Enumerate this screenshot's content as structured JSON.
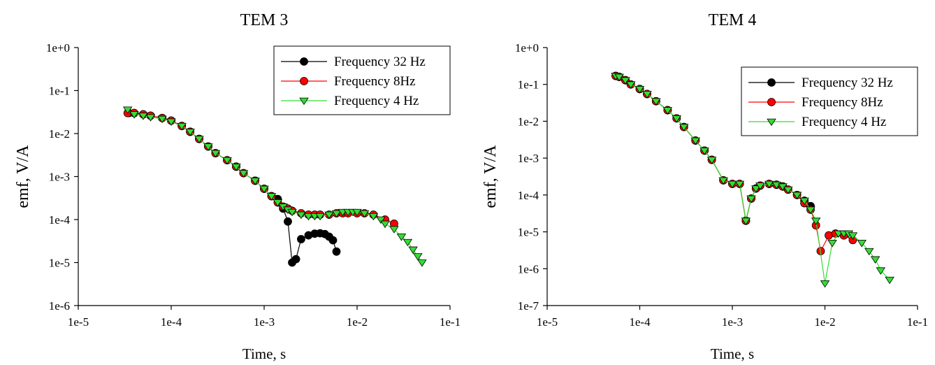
{
  "chart_data": [
    {
      "type": "line",
      "title": "TEM 3",
      "xlabel": "Time, s",
      "ylabel": "emf, V/A",
      "x_scale": "log",
      "y_scale": "log",
      "xlim": [
        1e-05,
        0.1
      ],
      "ylim": [
        1e-06,
        1
      ],
      "x_ticks": [
        "1e-5",
        "1e-4",
        "1e-3",
        "1e-2",
        "1e-1"
      ],
      "y_ticks": [
        "1e+0",
        "1e-1",
        "1e-2",
        "1e-3",
        "1e-4",
        "1e-5",
        "1e-6"
      ],
      "grid": false,
      "legend_position": "top-right",
      "series": [
        {
          "name": "Frequency 32 Hz",
          "color": "#000000",
          "marker": "circle",
          "x": [
            3.5e-05,
            4e-05,
            5e-05,
            6e-05,
            8e-05,
            0.0001,
            0.00013,
            0.00016,
            0.0002,
            0.00025,
            0.0003,
            0.0004,
            0.0005,
            0.0006,
            0.0008,
            0.001,
            0.0012,
            0.0014,
            0.0016,
            0.0018,
            0.002,
            0.0022,
            0.0025,
            0.003,
            0.0035,
            0.004,
            0.0045,
            0.005,
            0.0055,
            0.006
          ],
          "y": [
            0.03,
            0.03,
            0.028,
            0.026,
            0.023,
            0.02,
            0.015,
            0.011,
            0.0075,
            0.005,
            0.0035,
            0.0024,
            0.0017,
            0.0012,
            0.0008,
            0.00052,
            0.00035,
            0.0003,
            0.00018,
            9e-05,
            1e-05,
            1.2e-05,
            3.5e-05,
            4.3e-05,
            4.7e-05,
            4.8e-05,
            4.6e-05,
            4e-05,
            3.3e-05,
            1.8e-05
          ]
        },
        {
          "name": "Frequency 8Hz",
          "color": "#ff0000",
          "marker": "circle",
          "x": [
            3.4e-05,
            4e-05,
            5e-05,
            6e-05,
            8e-05,
            0.0001,
            0.00013,
            0.00016,
            0.0002,
            0.00025,
            0.0003,
            0.0004,
            0.0005,
            0.0006,
            0.0008,
            0.001,
            0.0012,
            0.0014,
            0.0016,
            0.0018,
            0.002,
            0.0025,
            0.003,
            0.0035,
            0.004,
            0.005,
            0.006,
            0.007,
            0.008,
            0.01,
            0.012,
            0.015,
            0.02,
            0.025
          ],
          "y": [
            0.03,
            0.03,
            0.028,
            0.026,
            0.023,
            0.02,
            0.015,
            0.011,
            0.0075,
            0.005,
            0.0035,
            0.0024,
            0.0017,
            0.0012,
            0.0008,
            0.00052,
            0.00035,
            0.00025,
            0.0002,
            0.00018,
            0.00016,
            0.00014,
            0.00013,
            0.00013,
            0.00013,
            0.00013,
            0.00014,
            0.00014,
            0.00014,
            0.00014,
            0.00014,
            0.00013,
            0.0001,
            8e-05
          ]
        },
        {
          "name": "Frequency 4 Hz",
          "color": "#33dd33",
          "marker": "triangle-down",
          "x": [
            3.4e-05,
            4e-05,
            5e-05,
            6e-05,
            8e-05,
            0.0001,
            0.00013,
            0.00016,
            0.0002,
            0.00025,
            0.0003,
            0.0004,
            0.0005,
            0.0006,
            0.0008,
            0.001,
            0.0012,
            0.0014,
            0.0016,
            0.0018,
            0.002,
            0.0025,
            0.003,
            0.0035,
            0.004,
            0.005,
            0.006,
            0.007,
            0.008,
            0.009,
            0.01,
            0.012,
            0.015,
            0.018,
            0.02,
            0.025,
            0.03,
            0.035,
            0.04,
            0.045,
            0.05
          ],
          "y": [
            0.036,
            0.028,
            0.026,
            0.024,
            0.022,
            0.019,
            0.015,
            0.011,
            0.0075,
            0.005,
            0.0035,
            0.0024,
            0.0017,
            0.0012,
            0.0008,
            0.00052,
            0.00035,
            0.00025,
            0.0002,
            0.00017,
            0.00015,
            0.00013,
            0.00012,
            0.00012,
            0.00012,
            0.00013,
            0.00014,
            0.00015,
            0.00015,
            0.00015,
            0.00015,
            0.00014,
            0.00012,
            0.0001,
            8e-05,
            6e-05,
            4e-05,
            3e-05,
            2e-05,
            1.4e-05,
            1e-05
          ]
        }
      ]
    },
    {
      "type": "line",
      "title": "TEM 4",
      "xlabel": "Time, s",
      "ylabel": "emf, V/A",
      "x_scale": "log",
      "y_scale": "log",
      "xlim": [
        1e-05,
        0.1
      ],
      "ylim": [
        1e-07,
        1
      ],
      "x_ticks": [
        "1e-5",
        "1e-4",
        "1e-3",
        "1e-2",
        "1e-1"
      ],
      "y_ticks": [
        "1e+0",
        "1e-1",
        "1e-2",
        "1e-3",
        "1e-4",
        "1e-5",
        "1e-6",
        "1e-7"
      ],
      "grid": false,
      "legend_position": "top-right",
      "series": [
        {
          "name": "Frequency 32 Hz",
          "color": "#000000",
          "marker": "circle",
          "x": [
            5.5e-05,
            6e-05,
            7e-05,
            8e-05,
            0.0001,
            0.00012,
            0.00015,
            0.0002,
            0.00025,
            0.0003,
            0.0004,
            0.0005,
            0.0006,
            0.0008,
            0.001,
            0.0012,
            0.0014,
            0.0016,
            0.0018,
            0.002,
            0.0025,
            0.003,
            0.0035,
            0.004,
            0.005,
            0.006,
            0.007
          ],
          "y": [
            0.17,
            0.16,
            0.13,
            0.1,
            0.075,
            0.055,
            0.035,
            0.02,
            0.012,
            0.007,
            0.003,
            0.0016,
            0.0009,
            0.00025,
            0.0002,
            0.0002,
            2e-05,
            8e-05,
            0.00015,
            0.00018,
            0.0002,
            0.00019,
            0.00017,
            0.00014,
            0.0001,
            7e-05,
            5e-05
          ]
        },
        {
          "name": "Frequency 8Hz",
          "color": "#ff0000",
          "marker": "circle",
          "x": [
            5.5e-05,
            6e-05,
            7e-05,
            8e-05,
            0.0001,
            0.00012,
            0.00015,
            0.0002,
            0.00025,
            0.0003,
            0.0004,
            0.0005,
            0.0006,
            0.0008,
            0.001,
            0.0012,
            0.0014,
            0.0016,
            0.0018,
            0.002,
            0.0025,
            0.003,
            0.0035,
            0.004,
            0.005,
            0.006,
            0.007,
            0.008,
            0.009,
            0.011,
            0.013,
            0.016,
            0.02
          ],
          "y": [
            0.17,
            0.16,
            0.13,
            0.1,
            0.075,
            0.055,
            0.035,
            0.02,
            0.012,
            0.007,
            0.003,
            0.0016,
            0.0009,
            0.00025,
            0.0002,
            0.0002,
            2e-05,
            8e-05,
            0.00015,
            0.00018,
            0.0002,
            0.00019,
            0.00017,
            0.00014,
            0.0001,
            6e-05,
            4e-05,
            1.5e-05,
            3e-06,
            8e-06,
            9e-06,
            8e-06,
            6e-06
          ]
        },
        {
          "name": "Frequency 4 Hz",
          "color": "#33dd33",
          "marker": "triangle-down",
          "x": [
            5.5e-05,
            6e-05,
            7e-05,
            8e-05,
            0.0001,
            0.00012,
            0.00015,
            0.0002,
            0.00025,
            0.0003,
            0.0004,
            0.0005,
            0.0006,
            0.0008,
            0.001,
            0.0012,
            0.0014,
            0.0016,
            0.0018,
            0.002,
            0.0025,
            0.003,
            0.0035,
            0.004,
            0.005,
            0.006,
            0.007,
            0.008,
            0.01,
            0.012,
            0.014,
            0.016,
            0.018,
            0.02,
            0.025,
            0.03,
            0.035,
            0.04,
            0.05
          ],
          "y": [
            0.17,
            0.16,
            0.13,
            0.1,
            0.075,
            0.055,
            0.035,
            0.02,
            0.012,
            0.007,
            0.003,
            0.0016,
            0.0009,
            0.00025,
            0.0002,
            0.0002,
            2e-05,
            8e-05,
            0.00015,
            0.00018,
            0.0002,
            0.00019,
            0.00017,
            0.00014,
            0.0001,
            7e-05,
            4e-05,
            2e-05,
            4e-07,
            5e-06,
            9e-06,
            9e-06,
            9e-06,
            8e-06,
            5e-06,
            3e-06,
            1.8e-06,
            9e-07,
            5e-07
          ]
        }
      ]
    }
  ]
}
